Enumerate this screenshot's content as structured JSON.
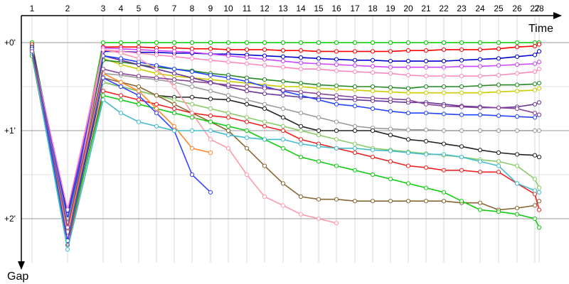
{
  "chart_data": {
    "type": "line",
    "title": "",
    "xlabel": "Time",
    "ylabel": "Gap",
    "x_ticks": [
      "1",
      "2",
      "3",
      "4",
      "5",
      "6",
      "7",
      "8",
      "9",
      "10",
      "11",
      "12",
      "13",
      "14",
      "15",
      "16",
      "17",
      "18",
      "19",
      "20",
      "21",
      "22",
      "23",
      "24",
      "25",
      "26",
      "27",
      "28"
    ],
    "y_ticks": [
      "+0'",
      "+1'",
      "+2'"
    ],
    "ylim": [
      0,
      2.5
    ],
    "y_direction": "down",
    "grid": true,
    "legend": "none",
    "series": [
      {
        "color": "#00cc00",
        "values": [
          0,
          2.05,
          0,
          0,
          0,
          0,
          0,
          0,
          0,
          0,
          0,
          0,
          0,
          0,
          0,
          0,
          0,
          0,
          0,
          0,
          0,
          0,
          0,
          0,
          0,
          0,
          0,
          0
        ]
      },
      {
        "color": "#ff0000",
        "values": [
          0.02,
          2.1,
          0.05,
          0.05,
          0.05,
          0.06,
          0.06,
          0.07,
          0.07,
          0.08,
          0.08,
          0.08,
          0.09,
          0.09,
          0.1,
          0.1,
          0.1,
          0.1,
          0.1,
          0.09,
          0.09,
          0.08,
          0.08,
          0.08,
          0.07,
          0.05,
          0.04,
          0.02
        ]
      },
      {
        "color": "#0000cc",
        "values": [
          0.05,
          1.95,
          0.1,
          0.1,
          0.11,
          0.11,
          0.12,
          0.12,
          0.13,
          0.13,
          0.14,
          0.15,
          0.16,
          0.17,
          0.18,
          0.19,
          0.2,
          0.2,
          0.21,
          0.21,
          0.21,
          0.21,
          0.2,
          0.19,
          0.18,
          0.16,
          0.14,
          0.1
        ]
      },
      {
        "color": "#cc44ff",
        "values": [
          0.06,
          2.0,
          0.06,
          0.07,
          0.08,
          0.09,
          0.1,
          0.11,
          0.13,
          0.15,
          0.17,
          0.19,
          0.21,
          0.23,
          0.24,
          0.25,
          0.26,
          0.27,
          0.28,
          0.28,
          0.28,
          0.28,
          0.27,
          0.27,
          0.26,
          0.25,
          0.24,
          0.22
        ]
      },
      {
        "color": "#ff88bb",
        "values": [
          0.08,
          1.9,
          0.08,
          0.1,
          0.12,
          0.14,
          0.16,
          0.18,
          0.2,
          0.22,
          0.24,
          0.26,
          0.28,
          0.3,
          0.3,
          0.32,
          0.33,
          0.34,
          0.35,
          0.37,
          0.38,
          0.38,
          0.38,
          0.38,
          0.37,
          0.35,
          0.33,
          0.3
        ]
      },
      {
        "color": "#cccc00",
        "values": [
          0.1,
          2.15,
          0.18,
          0.25,
          0.3,
          0.35,
          0.38,
          0.4,
          0.42,
          0.44,
          0.46,
          0.48,
          0.5,
          0.5,
          0.52,
          0.53,
          0.54,
          0.55,
          0.56,
          0.57,
          0.57,
          0.57,
          0.57,
          0.57,
          0.56,
          0.55,
          0.54,
          0.52
        ]
      },
      {
        "color": "#228822",
        "values": [
          0.12,
          2.05,
          0.2,
          0.22,
          0.25,
          0.28,
          0.3,
          0.32,
          0.35,
          0.37,
          0.4,
          0.42,
          0.44,
          0.46,
          0.48,
          0.49,
          0.5,
          0.5,
          0.51,
          0.52,
          0.5,
          0.5,
          0.5,
          0.49,
          0.48,
          0.48,
          0.47,
          0.46
        ]
      },
      {
        "color": "#663399",
        "values": [
          0.12,
          2.1,
          0.15,
          0.2,
          0.25,
          0.3,
          0.35,
          0.4,
          0.45,
          0.5,
          0.55,
          0.58,
          0.6,
          0.62,
          0.63,
          0.64,
          0.65,
          0.66,
          0.67,
          0.68,
          0.68,
          0.7,
          0.72,
          0.73,
          0.74,
          0.73,
          0.7,
          0.68
        ]
      },
      {
        "color": "#2244ff",
        "values": [
          0.1,
          2.0,
          0.15,
          0.18,
          0.22,
          0.26,
          0.3,
          0.33,
          0.37,
          0.4,
          0.44,
          0.5,
          0.55,
          0.6,
          0.65,
          0.7,
          0.72,
          0.75,
          0.78,
          0.8,
          0.8,
          0.81,
          0.82,
          0.82,
          0.83,
          0.84,
          0.85,
          0.82
        ]
      },
      {
        "color": "#999999",
        "values": [
          0.12,
          2.05,
          0.35,
          0.37,
          0.4,
          0.42,
          0.45,
          0.5,
          0.55,
          0.6,
          0.65,
          0.7,
          0.75,
          0.8,
          0.85,
          0.9,
          0.95,
          0.97,
          0.98,
          0.99,
          0.99,
          1.0,
          1.0,
          1.0,
          1.0,
          1.0,
          1.0,
          1.0
        ]
      },
      {
        "color": "#222222",
        "values": [
          0.05,
          2.25,
          0.45,
          0.5,
          0.55,
          0.6,
          0.62,
          0.62,
          0.64,
          0.65,
          0.7,
          0.75,
          0.85,
          0.95,
          1.0,
          1.0,
          1.0,
          1.0,
          1.05,
          1.1,
          1.12,
          1.15,
          1.18,
          1.22,
          1.25,
          1.27,
          1.28,
          1.3
        ]
      },
      {
        "color": "#88cc66",
        "values": [
          0.1,
          2.1,
          0.45,
          0.5,
          0.55,
          0.6,
          0.65,
          0.7,
          0.75,
          0.8,
          0.85,
          0.9,
          0.95,
          1.0,
          1.05,
          1.1,
          1.15,
          1.2,
          1.22,
          1.24,
          1.26,
          1.28,
          1.3,
          1.33,
          1.35,
          1.4,
          1.55,
          1.65
        ]
      },
      {
        "color": "#ee2222",
        "values": [
          0.15,
          2.3,
          0.55,
          0.6,
          0.65,
          0.7,
          0.75,
          0.8,
          0.83,
          0.85,
          0.9,
          0.95,
          1.0,
          1.1,
          1.15,
          1.2,
          1.25,
          1.3,
          1.35,
          1.4,
          1.42,
          1.45,
          1.45,
          1.47,
          1.47,
          1.6,
          1.72,
          1.9
        ]
      },
      {
        "color": "#886633",
        "values": [
          0.1,
          2.2,
          0.4,
          0.45,
          0.5,
          0.6,
          0.7,
          0.8,
          0.9,
          1.0,
          1.2,
          1.4,
          1.6,
          1.75,
          1.78,
          1.78,
          1.8,
          1.8,
          1.8,
          1.8,
          1.8,
          1.8,
          1.82,
          1.82,
          1.9,
          1.88,
          1.85,
          1.8
        ]
      },
      {
        "color": "#11cc11",
        "values": [
          0.15,
          2.25,
          0.6,
          0.65,
          0.7,
          0.75,
          0.8,
          0.85,
          0.9,
          0.95,
          1.0,
          1.1,
          1.2,
          1.3,
          1.35,
          1.4,
          1.45,
          1.5,
          1.55,
          1.6,
          1.65,
          1.7,
          1.8,
          1.9,
          1.92,
          1.95,
          2.0,
          2.1
        ]
      },
      {
        "color": "#ff99aa",
        "values": [
          0.08,
          2.2,
          0.08,
          0.12,
          0.18,
          0.3,
          0.5,
          0.8,
          1.1,
          1.2,
          1.5,
          1.75,
          1.85,
          1.95,
          2.0,
          2.05,
          null,
          null,
          null,
          null,
          null,
          null,
          null,
          null,
          null,
          null,
          null,
          null
        ]
      },
      {
        "color": "#ff8833",
        "values": [
          0.1,
          2.15,
          0.35,
          0.45,
          0.55,
          0.75,
          0.95,
          1.2,
          1.25,
          null,
          null,
          null,
          null,
          null,
          null,
          null,
          null,
          null,
          null,
          null,
          null,
          null,
          null,
          null,
          null,
          null,
          null,
          null
        ]
      },
      {
        "color": "#3344ff",
        "values": [
          0.07,
          2.25,
          0.4,
          0.5,
          0.6,
          0.8,
          1.0,
          1.5,
          1.7,
          null,
          null,
          null,
          null,
          null,
          null,
          null,
          null,
          null,
          null,
          null,
          null,
          null,
          null,
          null,
          null,
          null,
          null,
          null
        ]
      },
      {
        "color": "#44bbcc",
        "values": [
          0.12,
          2.35,
          0.65,
          0.8,
          0.9,
          0.95,
          1.0,
          1.0,
          1.0,
          1.05,
          1.08,
          1.1,
          1.1,
          1.15,
          1.18,
          1.2,
          1.2,
          1.22,
          1.23,
          1.25,
          1.27,
          1.27,
          1.3,
          1.35,
          1.4,
          1.6,
          1.68,
          1.7
        ]
      },
      {
        "color": "#884499",
        "values": [
          0.1,
          2.1,
          0.3,
          0.35,
          0.38,
          0.4,
          0.42,
          0.44,
          0.46,
          0.48,
          0.5,
          0.52,
          0.54,
          0.56,
          0.58,
          0.6,
          0.62,
          0.63,
          0.64,
          0.65,
          0.7,
          0.72,
          0.73,
          0.74,
          0.74,
          0.75,
          0.8,
          0.82
        ]
      }
    ]
  }
}
